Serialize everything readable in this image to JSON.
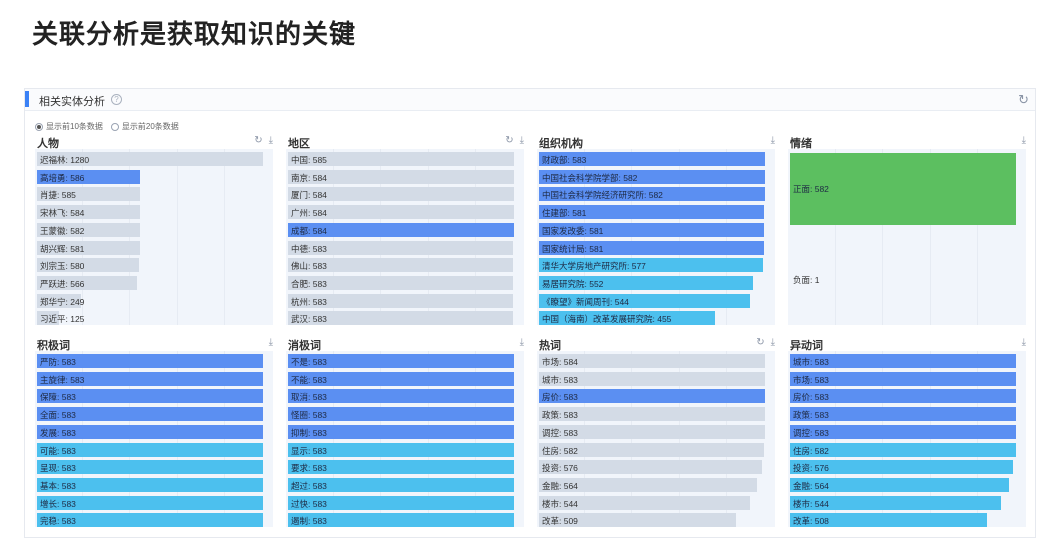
{
  "page_title": "关联分析是获取知识的关键",
  "panel": {
    "title": "相关实体分析",
    "help_icon": "question-icon",
    "refresh_icon": "refresh-icon"
  },
  "radios": [
    {
      "label": "显示前10条数据",
      "checked": true
    },
    {
      "label": "显示前20条数据",
      "checked": false
    }
  ],
  "colors": {
    "gray": "#d3dbe6",
    "blue": "#5b8ff2",
    "cyan": "#4cc0ee",
    "green": "#5cbf60"
  },
  "cards": [
    {
      "title": "人物",
      "icons": [
        "refresh-icon",
        "download-icon"
      ],
      "max": 1280,
      "rows": [
        {
          "label": "迟福林: 1280",
          "value": 1280,
          "color": "gray"
        },
        {
          "label": "高培勇: 586",
          "value": 586,
          "color": "blue"
        },
        {
          "label": "肖捷: 585",
          "value": 585,
          "color": "gray"
        },
        {
          "label": "宋林飞: 584",
          "value": 584,
          "color": "gray"
        },
        {
          "label": "王蒙徽: 582",
          "value": 582,
          "color": "gray"
        },
        {
          "label": "胡兴辉: 581",
          "value": 581,
          "color": "gray"
        },
        {
          "label": "刘宗玉: 580",
          "value": 580,
          "color": "gray"
        },
        {
          "label": "严跃进: 566",
          "value": 566,
          "color": "gray"
        },
        {
          "label": "郑华宁: 249",
          "value": 249,
          "color": "gray"
        },
        {
          "label": "习近平: 125",
          "value": 125,
          "color": "gray"
        }
      ]
    },
    {
      "title": "地区",
      "icons": [
        "refresh-icon",
        "download-icon"
      ],
      "max": 585,
      "rows": [
        {
          "label": "中国: 585",
          "value": 585,
          "color": "gray"
        },
        {
          "label": "南京: 584",
          "value": 584,
          "color": "gray"
        },
        {
          "label": "厦门: 584",
          "value": 584,
          "color": "gray"
        },
        {
          "label": "广州: 584",
          "value": 584,
          "color": "gray"
        },
        {
          "label": "成都: 584",
          "value": 584,
          "color": "blue"
        },
        {
          "label": "中德: 583",
          "value": 583,
          "color": "gray"
        },
        {
          "label": "佛山: 583",
          "value": 583,
          "color": "gray"
        },
        {
          "label": "合肥: 583",
          "value": 583,
          "color": "gray"
        },
        {
          "label": "杭州: 583",
          "value": 583,
          "color": "gray"
        },
        {
          "label": "武汉: 583",
          "value": 583,
          "color": "gray"
        }
      ]
    },
    {
      "title": "组织机构",
      "icons": [
        "download-icon"
      ],
      "max": 583,
      "rows": [
        {
          "label": "财政部: 583",
          "value": 583,
          "color": "blue"
        },
        {
          "label": "中国社会科学院学部: 582",
          "value": 582,
          "color": "blue"
        },
        {
          "label": "中国社会科学院经济研究所: 582",
          "value": 582,
          "color": "blue"
        },
        {
          "label": "住建部: 581",
          "value": 581,
          "color": "blue"
        },
        {
          "label": "国家发改委: 581",
          "value": 581,
          "color": "blue"
        },
        {
          "label": "国家统计局: 581",
          "value": 581,
          "color": "blue"
        },
        {
          "label": "清华大学房地产研究所: 577",
          "value": 577,
          "color": "cyan"
        },
        {
          "label": "易居研究院: 552",
          "value": 552,
          "color": "cyan"
        },
        {
          "label": "《瞭望》新闻周刊: 544",
          "value": 544,
          "color": "cyan"
        },
        {
          "label": "中国（海南）改革发展研究院: 455",
          "value": 455,
          "color": "cyan"
        }
      ]
    },
    {
      "title": "情绪",
      "icons": [
        "download-icon"
      ],
      "max": 582,
      "rows": [
        {
          "label": "正面: 582",
          "value": 582,
          "color": "green"
        },
        {
          "label": "负面: 1",
          "value": 1,
          "color": "gray"
        }
      ]
    },
    {
      "title": "积极词",
      "icons": [
        "download-icon"
      ],
      "max": 583,
      "rows": [
        {
          "label": "严防: 583",
          "value": 583,
          "color": "blue"
        },
        {
          "label": "主旋律: 583",
          "value": 583,
          "color": "blue"
        },
        {
          "label": "保障: 583",
          "value": 583,
          "color": "blue"
        },
        {
          "label": "全面: 583",
          "value": 583,
          "color": "blue"
        },
        {
          "label": "发展: 583",
          "value": 583,
          "color": "blue"
        },
        {
          "label": "可能: 583",
          "value": 583,
          "color": "cyan"
        },
        {
          "label": "呈现: 583",
          "value": 583,
          "color": "cyan"
        },
        {
          "label": "基本: 583",
          "value": 583,
          "color": "cyan"
        },
        {
          "label": "增长: 583",
          "value": 583,
          "color": "cyan"
        },
        {
          "label": "完稳: 583",
          "value": 583,
          "color": "cyan"
        }
      ]
    },
    {
      "title": "消极词",
      "icons": [
        "download-icon"
      ],
      "max": 583,
      "rows": [
        {
          "label": "不是: 583",
          "value": 583,
          "color": "blue"
        },
        {
          "label": "不能: 583",
          "value": 583,
          "color": "blue"
        },
        {
          "label": "取消: 583",
          "value": 583,
          "color": "blue"
        },
        {
          "label": "怪圈: 583",
          "value": 583,
          "color": "blue"
        },
        {
          "label": "抑制: 583",
          "value": 583,
          "color": "blue"
        },
        {
          "label": "显示: 583",
          "value": 583,
          "color": "cyan"
        },
        {
          "label": "要求: 583",
          "value": 583,
          "color": "cyan"
        },
        {
          "label": "超过: 583",
          "value": 583,
          "color": "cyan"
        },
        {
          "label": "过快: 583",
          "value": 583,
          "color": "cyan"
        },
        {
          "label": "遏制: 583",
          "value": 583,
          "color": "cyan"
        }
      ]
    },
    {
      "title": "热词",
      "icons": [
        "refresh-icon",
        "download-icon"
      ],
      "max": 584,
      "rows": [
        {
          "label": "市场: 584",
          "value": 584,
          "color": "gray"
        },
        {
          "label": "城市: 583",
          "value": 583,
          "color": "gray"
        },
        {
          "label": "房价: 583",
          "value": 583,
          "color": "blue"
        },
        {
          "label": "政策: 583",
          "value": 583,
          "color": "gray"
        },
        {
          "label": "调控: 583",
          "value": 583,
          "color": "gray"
        },
        {
          "label": "住房: 582",
          "value": 582,
          "color": "gray"
        },
        {
          "label": "投资: 576",
          "value": 576,
          "color": "gray"
        },
        {
          "label": "金融: 564",
          "value": 564,
          "color": "gray"
        },
        {
          "label": "楼市: 544",
          "value": 544,
          "color": "gray"
        },
        {
          "label": "改革: 509",
          "value": 509,
          "color": "gray"
        }
      ]
    },
    {
      "title": "异动词",
      "icons": [
        "download-icon"
      ],
      "max": 583,
      "rows": [
        {
          "label": "城市: 583",
          "value": 583,
          "color": "blue"
        },
        {
          "label": "市场: 583",
          "value": 583,
          "color": "blue"
        },
        {
          "label": "房价: 583",
          "value": 583,
          "color": "blue"
        },
        {
          "label": "政策: 583",
          "value": 583,
          "color": "blue"
        },
        {
          "label": "调控: 583",
          "value": 583,
          "color": "blue"
        },
        {
          "label": "住房: 582",
          "value": 582,
          "color": "cyan"
        },
        {
          "label": "投资: 576",
          "value": 576,
          "color": "cyan"
        },
        {
          "label": "金融: 564",
          "value": 564,
          "color": "cyan"
        },
        {
          "label": "楼市: 544",
          "value": 544,
          "color": "cyan"
        },
        {
          "label": "改革: 508",
          "value": 508,
          "color": "cyan"
        }
      ]
    }
  ]
}
